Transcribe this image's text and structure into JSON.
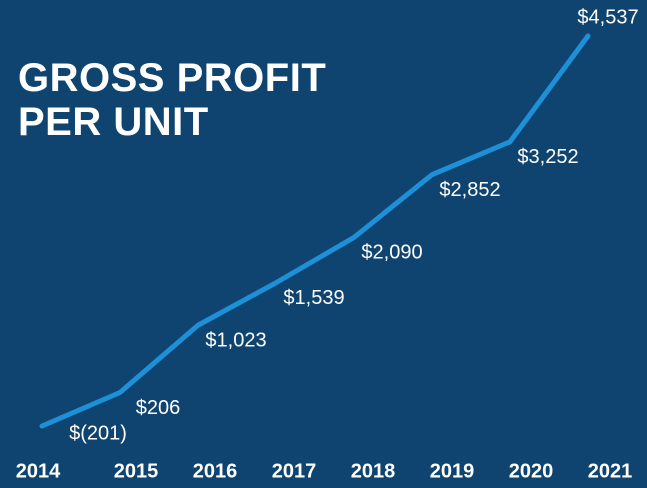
{
  "chart_data": {
    "type": "line",
    "title": "GROSS PROFIT PER UNIT",
    "categories": [
      "2014",
      "2015",
      "2016",
      "2017",
      "2018",
      "2019",
      "2020",
      "2021"
    ],
    "series": [
      {
        "color": "#1e90d8",
        "values": [
          -201,
          206,
          1023,
          1539,
          2090,
          2852,
          3252,
          4537
        ],
        "value_labels": [
          "$(201)",
          "$206",
          "$1,023",
          "$1,539",
          "$2,090",
          "$2,852",
          "$3,252",
          "$4,537"
        ]
      }
    ]
  }
}
